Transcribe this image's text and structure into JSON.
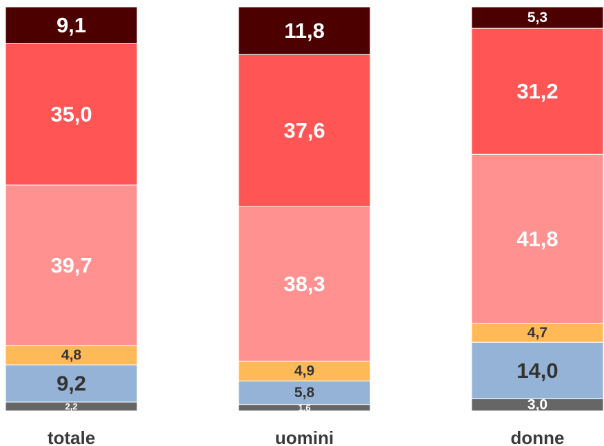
{
  "chart_data": {
    "type": "bar",
    "stacked": true,
    "percent_stacked": true,
    "grid": false,
    "legend": "none",
    "categories": [
      "totale",
      "uomini",
      "donne"
    ],
    "series": [
      {
        "color": "#666666",
        "text_color": "#ffffff",
        "values": [
          2.2,
          1.6,
          3.0
        ],
        "labels": [
          "2,2",
          "1,6",
          "3,0"
        ]
      },
      {
        "color": "#95b3d7",
        "text_color": "#333333",
        "values": [
          9.2,
          5.8,
          14.0
        ],
        "labels": [
          "9,2",
          "5,8",
          "14,0"
        ]
      },
      {
        "color": "#ffb957",
        "text_color": "#333333",
        "values": [
          4.8,
          4.9,
          4.7
        ],
        "labels": [
          "4,8",
          "4,9",
          "4,7"
        ]
      },
      {
        "color": "#ff9190",
        "text_color": "#ffffff",
        "values": [
          39.7,
          38.3,
          41.8
        ],
        "labels": [
          "39,7",
          "38,3",
          "41,8"
        ]
      },
      {
        "color": "#ff5555",
        "text_color": "#ffffff",
        "values": [
          35.0,
          37.6,
          31.2
        ],
        "labels": [
          "35,0",
          "37,6",
          "31,2"
        ]
      },
      {
        "color": "#4d0000",
        "text_color": "#ffffff",
        "values": [
          9.1,
          11.8,
          5.3
        ],
        "labels": [
          "9,1",
          "11,8",
          "5,3"
        ]
      }
    ]
  }
}
